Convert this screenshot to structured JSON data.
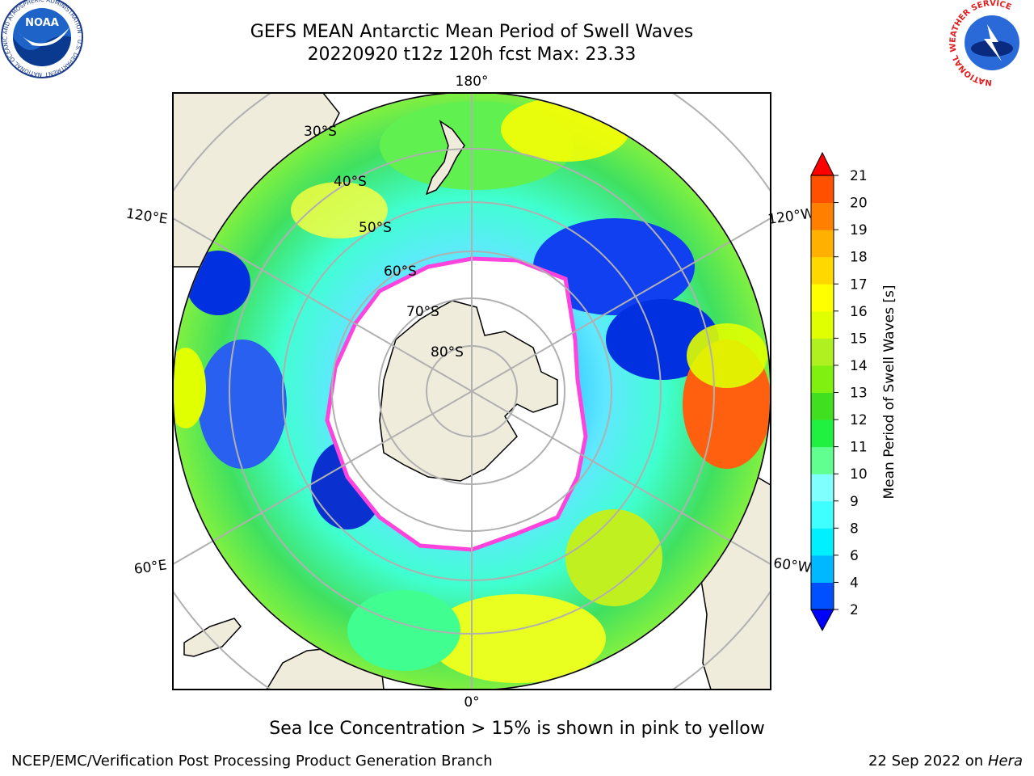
{
  "title": {
    "line1": "GEFS MEAN Antarctic Mean Period of Swell Waves",
    "line2": "20220920 t12z 120h fcst   Max: 23.33"
  },
  "map": {
    "projection": "south-polar-stereographic",
    "longitude_labels": [
      "180°",
      "120°E",
      "120°W",
      "60°E",
      "60°W",
      "0°"
    ],
    "latitude_labels": [
      "30°S",
      "40°S",
      "50°S",
      "60°S",
      "70°S",
      "80°S"
    ],
    "colors": {
      "land": "#efecdc",
      "sea_ice": "#ffffff",
      "ice_edge": "#ff44dd",
      "ice_edge_inner": "#ffc040",
      "grid": "#b0b0b0"
    }
  },
  "colorbar": {
    "label": "Mean Period of Swell Waves [s]",
    "ticks": [
      "2",
      "4",
      "6",
      "8",
      "9",
      "10",
      "11",
      "12",
      "13",
      "14",
      "15",
      "16",
      "17",
      "18",
      "19",
      "20",
      "21"
    ],
    "colors": [
      "#0050ff",
      "#00b8ff",
      "#00f0ff",
      "#40ffff",
      "#80ffff",
      "#60ff90",
      "#20f040",
      "#40e020",
      "#80f010",
      "#b0f020",
      "#e0ff00",
      "#ffff00",
      "#ffd800",
      "#ffb000",
      "#ff8000",
      "#ff5000",
      "#ff1000"
    ],
    "under_color": "#0000ff",
    "over_color": "#ff0000"
  },
  "footer": {
    "note": "Sea Ice Concentration > 15% is shown in pink to yellow",
    "credit_left": "NCEP/EMC/Verification Post Processing Product Generation Branch",
    "date": "22 Sep 2022 on",
    "machine": "Hera"
  },
  "logos": {
    "left": "NOAA",
    "left_ring": "NATIONAL OCEANIC AND ATMOSPHERIC ADMINISTRATION · U.S. DEPARTMENT OF COMMERCE",
    "right_ring": "NATIONAL WEATHER SERVICE"
  }
}
